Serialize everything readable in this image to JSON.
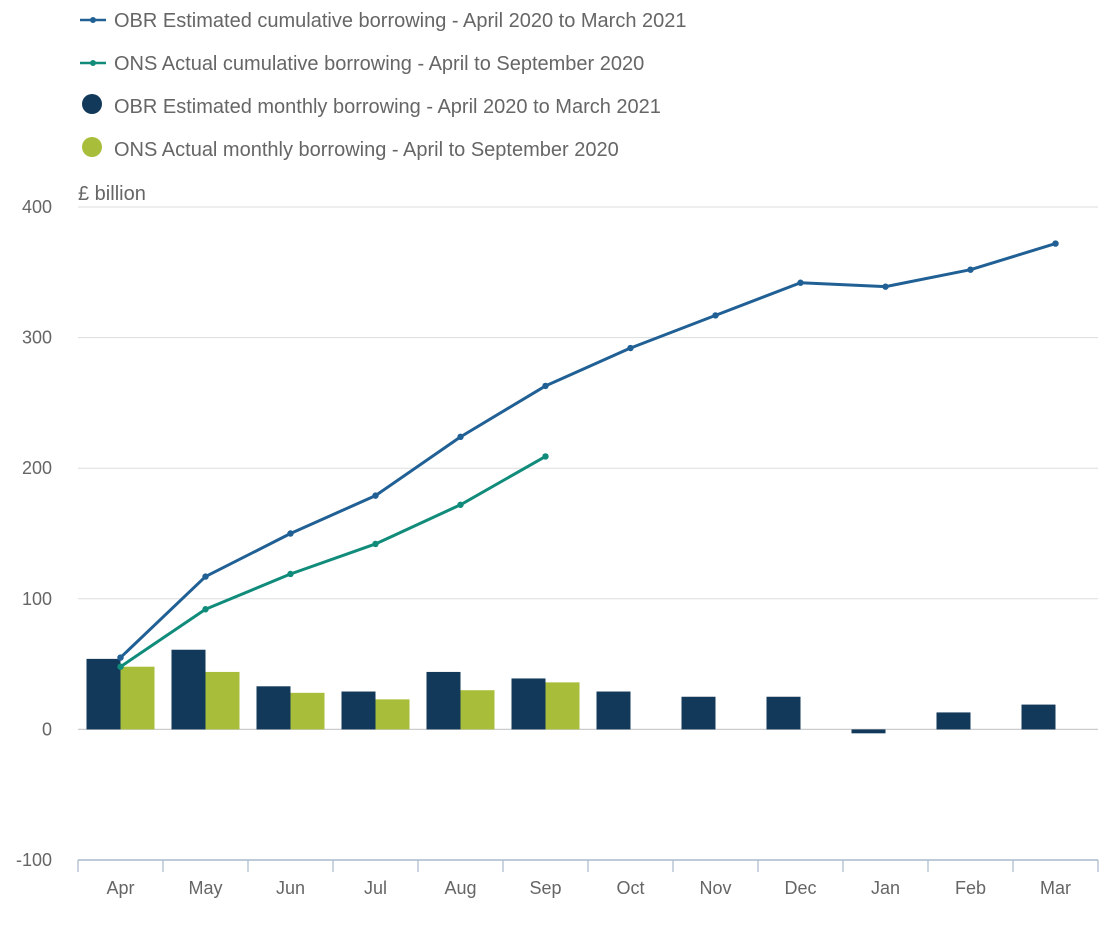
{
  "chart_data": {
    "type": "bar",
    "unit_label": "£ billion",
    "categories": [
      "Apr",
      "May",
      "Jun",
      "Jul",
      "Aug",
      "Sep",
      "Oct",
      "Nov",
      "Dec",
      "Jan",
      "Feb",
      "Mar"
    ],
    "ylim": [
      -100,
      400
    ],
    "yticks": [
      -100,
      0,
      100,
      200,
      300,
      400
    ],
    "grid": true,
    "legend_position": "top-left",
    "bar_series": [
      {
        "name": "OBR Estimated monthly borrowing - April 2020 to March 2021",
        "color": "#12385a",
        "values": [
          54,
          61,
          33,
          29,
          44,
          39,
          29,
          25,
          25,
          -3,
          13,
          19
        ]
      },
      {
        "name": "ONS Actual monthly borrowing - April to September 2020",
        "color": "#a8bd3a",
        "values": [
          48,
          44,
          28,
          23,
          30,
          36,
          null,
          null,
          null,
          null,
          null,
          null
        ]
      }
    ],
    "line_series": [
      {
        "name": "OBR Estimated cumulative borrowing - April 2020 to March 2021",
        "color": "#206095",
        "values": [
          55,
          117,
          150,
          179,
          224,
          263,
          292,
          317,
          342,
          339,
          352,
          372
        ]
      },
      {
        "name": "ONS Actual cumulative borrowing - April to September 2020",
        "color": "#118c7b",
        "values": [
          48,
          92,
          119,
          142,
          172,
          209,
          null,
          null,
          null,
          null,
          null,
          null
        ]
      }
    ],
    "legend": [
      {
        "label": "OBR Estimated cumulative borrowing - April 2020 to March 2021",
        "marker": "line",
        "color": "#206095"
      },
      {
        "label": "ONS Actual cumulative borrowing - April to September 2020",
        "marker": "line",
        "color": "#118c7b"
      },
      {
        "label": "OBR Estimated monthly borrowing - April 2020 to March 2021",
        "marker": "circle",
        "color": "#12385a"
      },
      {
        "label": "ONS Actual monthly borrowing - April to September 2020",
        "marker": "circle",
        "color": "#a8bd3a"
      }
    ]
  }
}
